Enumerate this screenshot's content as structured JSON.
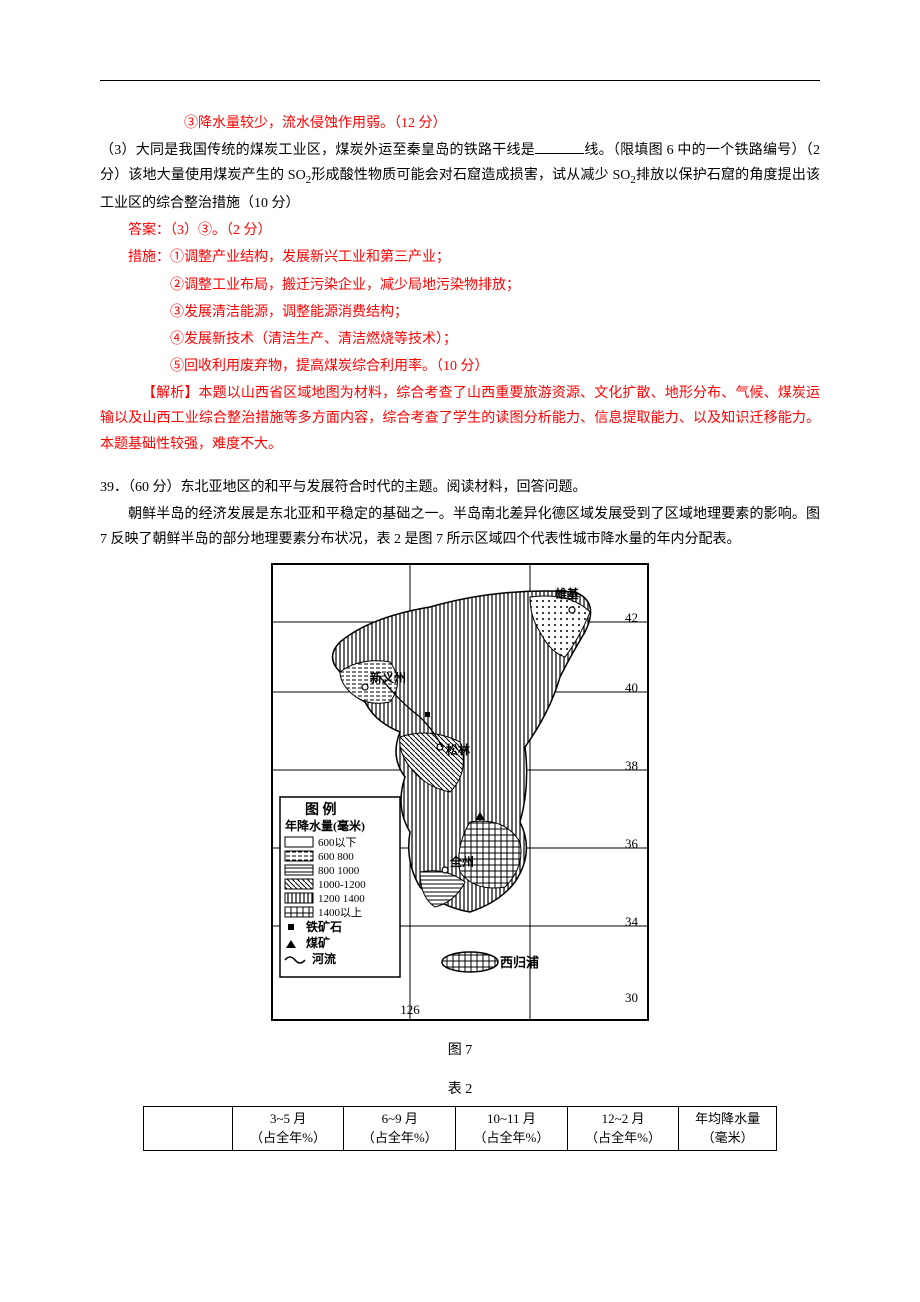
{
  "line1": "③降水量较少，流水侵蚀作用弱。（12 分）",
  "q3_prefix": "（3）大同是我国传统的煤炭工业区，煤炭外运至秦皇岛的铁路干线是",
  "q3_suffix": "线。（限填图 6 中的一个铁路编号）（2 分）该地大量使用煤炭产生的 SO",
  "q3_so2sub": "2",
  "q3_after_so2_a": "形成酸性物质可能会对石窟造成损害，试从减少 SO",
  "q3_after_so2_b": "排放以保护石窟的角度提出该工业区的综合整治措施（10 分）",
  "ans_line": "答案：（3）③。（2 分）",
  "measures_label": "措施：",
  "m1": "①调整产业结构，发展新兴工业和第三产业；",
  "m2": "②调整工业布局，搬迁污染企业，减少局地污染物排放；",
  "m3": "③发展清洁能源，调整能源消费结构；",
  "m4": "④发展新技术（清洁生产、清洁燃烧等技术）；",
  "m5": "⑤回收利用废弃物，提高煤炭综合利用率。（10 分）",
  "analysis_label": "【解析】",
  "analysis_body": "本题以山西省区域地图为材料，综合考查了山西重要旅游资源、文化扩散、地形分布、气候、煤炭运输以及山西工业综合整治措施等多方面内容，综合考查了学生的读图分析能力、信息提取能力、以及知识迁移能力。本题基础性较强，难度不大。",
  "q39_header": "39．（60 分）东北亚地区的和平与发展符合时代的主题。阅读材料，回答问题。",
  "q39_p1": "朝鲜半岛的经济发展是东北亚和平稳定的基础之一。半岛南北差异化德区域发展受到了区域地理要素的影响。图 7 反映了朝鲜半岛的部分地理要素分布状况，表 2 是图 7 所示区域四个代表性城市降水量的年内分配表。",
  "fig7_caption": "图 7",
  "table2_caption": "表 2",
  "table": {
    "headers": [
      "",
      "3~5 月\n（占全年%）",
      "6~9 月\n（占全年%）",
      "10~11 月\n（占全年%）",
      "12~2 月\n（占全年%）",
      "年均降水量\n（毫米）"
    ]
  },
  "map": {
    "legend_title": "图 例",
    "legend_sub": "年降水量(毫米)",
    "legend_items": [
      "600以下",
      "600 800",
      "800 1000",
      "1000-1200",
      "1200 1400",
      "1400以上"
    ],
    "legend_symbols": [
      "铁矿石",
      "煤矿",
      "河流"
    ],
    "city_xinyizhou": "新义州",
    "city_songlin": "松林",
    "city_quanzhou": "全州",
    "city_xiguipu": "西归浦",
    "city_xiongji": "雄基",
    "lat_42": "42",
    "lat_40": "40",
    "lat_38": "38",
    "lat_36": "36",
    "lat_34": "34",
    "lat_30": "30",
    "lon_126": "126"
  }
}
